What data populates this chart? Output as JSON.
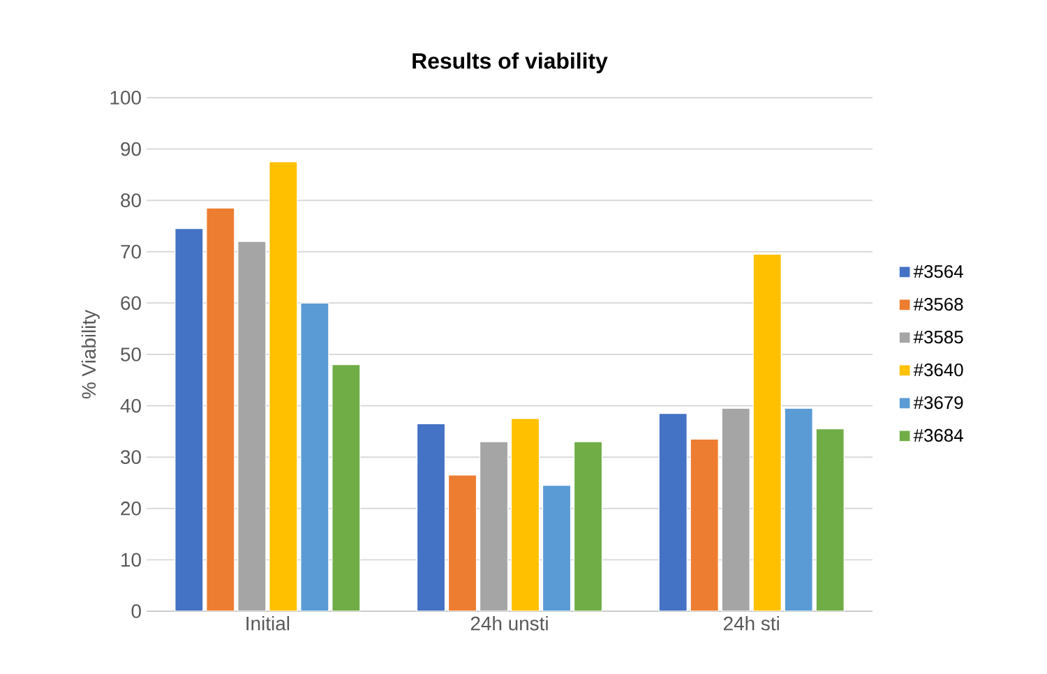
{
  "chart_data": {
    "type": "bar",
    "title": "Results of viability",
    "ylabel": "% Viability",
    "categories": [
      "Initial",
      "24h unsti",
      "24h sti"
    ],
    "series": [
      {
        "name": "#3564",
        "color": "#4472c4",
        "values": [
          74.5,
          36.5,
          38.5
        ]
      },
      {
        "name": "#3568",
        "color": "#ed7d31",
        "values": [
          78.5,
          26.5,
          33.5
        ]
      },
      {
        "name": "#3585",
        "color": "#a5a5a5",
        "values": [
          72,
          33,
          39.5
        ]
      },
      {
        "name": "#3640",
        "color": "#ffc000",
        "values": [
          87.5,
          37.5,
          69.5
        ]
      },
      {
        "name": "#3679",
        "color": "#5b9bd5",
        "values": [
          60,
          24.5,
          39.5
        ]
      },
      {
        "name": "#3684",
        "color": "#70ad47",
        "values": [
          48,
          33,
          35.5
        ]
      }
    ],
    "ylim": [
      0,
      100
    ],
    "yticks": [
      0,
      10,
      20,
      30,
      40,
      50,
      60,
      70,
      80,
      90,
      100
    ],
    "grid": "y",
    "legend": "right"
  }
}
